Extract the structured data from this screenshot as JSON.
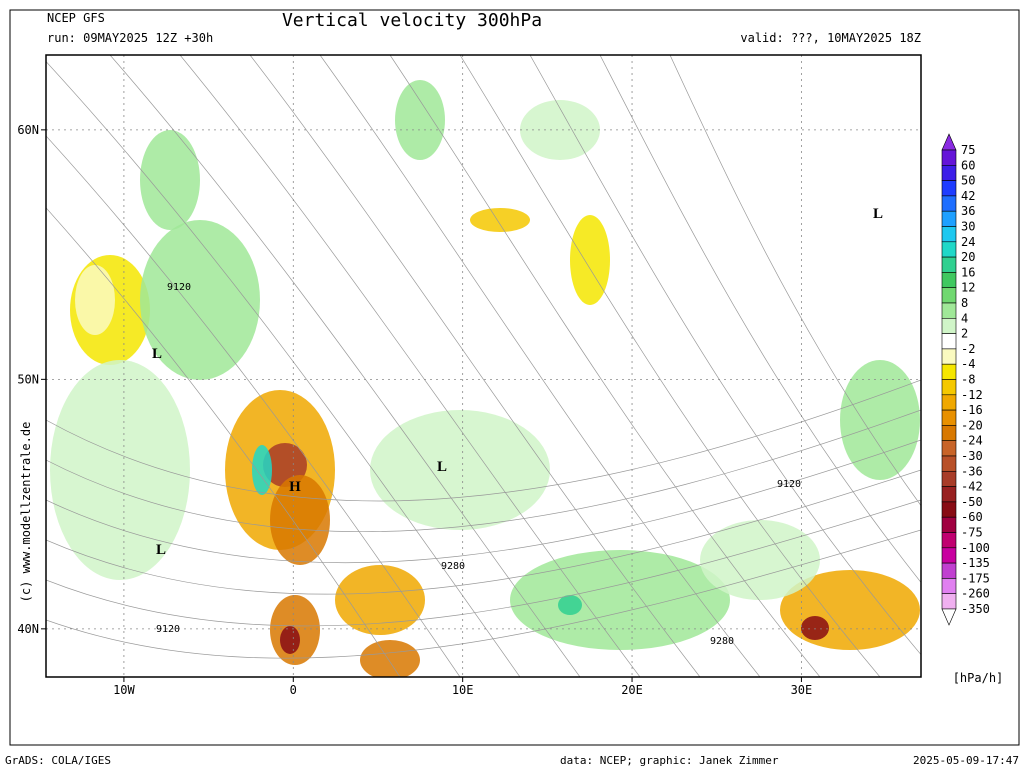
{
  "header": {
    "model": "NCEP GFS",
    "run": "run: 09MAY2025 12Z +30h",
    "title": "Vertical velocity 300hPa",
    "valid": "valid: ???, 10MAY2025 18Z"
  },
  "map": {
    "xlim": [
      -14.6,
      37.06
    ],
    "ylim": [
      38.07,
      63.0
    ],
    "lon_ticks": [
      {
        "value": -10,
        "label": "10W"
      },
      0,
      {
        "value": 10,
        "label": "10E"
      },
      {
        "value": 20,
        "label": "20E"
      },
      {
        "value": 30,
        "label": "30E"
      }
    ],
    "lat_ticks": [
      {
        "value": 60,
        "label": "60N"
      },
      {
        "value": 50,
        "label": "50N"
      },
      {
        "value": 40,
        "label": "40N"
      }
    ],
    "grid": true,
    "labels": [
      "L",
      "L",
      "L",
      "L",
      "H",
      "9120",
      "9120",
      "9120",
      "9280",
      "9280"
    ],
    "copyright": "(c) www.modellzentrale.de"
  },
  "colorbar": {
    "unit": "[hPa/h]",
    "levels": [
      75,
      60,
      50,
      42,
      36,
      30,
      24,
      20,
      16,
      12,
      8,
      4,
      2,
      -2,
      -4,
      -8,
      -12,
      -16,
      -20,
      -24,
      -30,
      -36,
      -42,
      -50,
      -60,
      -75,
      -100,
      -135,
      -175,
      -260,
      -350
    ],
    "colors": [
      "#8a2be2",
      "#6414d8",
      "#3c1ee8",
      "#1e3cff",
      "#1e6eff",
      "#1ea0ff",
      "#1ec8f0",
      "#20d8c8",
      "#30d090",
      "#40c860",
      "#70d870",
      "#a0e898",
      "#d0f5c8",
      "#ffffff",
      "#fafac0",
      "#f5e600",
      "#f5c800",
      "#f0a800",
      "#e89000",
      "#d87800",
      "#c86428",
      "#b85028",
      "#a83c28",
      "#982020",
      "#880c14",
      "#a00040",
      "#c00070",
      "#c800a0",
      "#c040d0",
      "#e080f0",
      "#f0b0f0",
      "#ffffff"
    ]
  },
  "footer": {
    "software": "GrADS: COLA/IGES",
    "credits": "data: NCEP; graphic: Janek Zimmer",
    "timestamp": "2025-05-09-17:47"
  }
}
